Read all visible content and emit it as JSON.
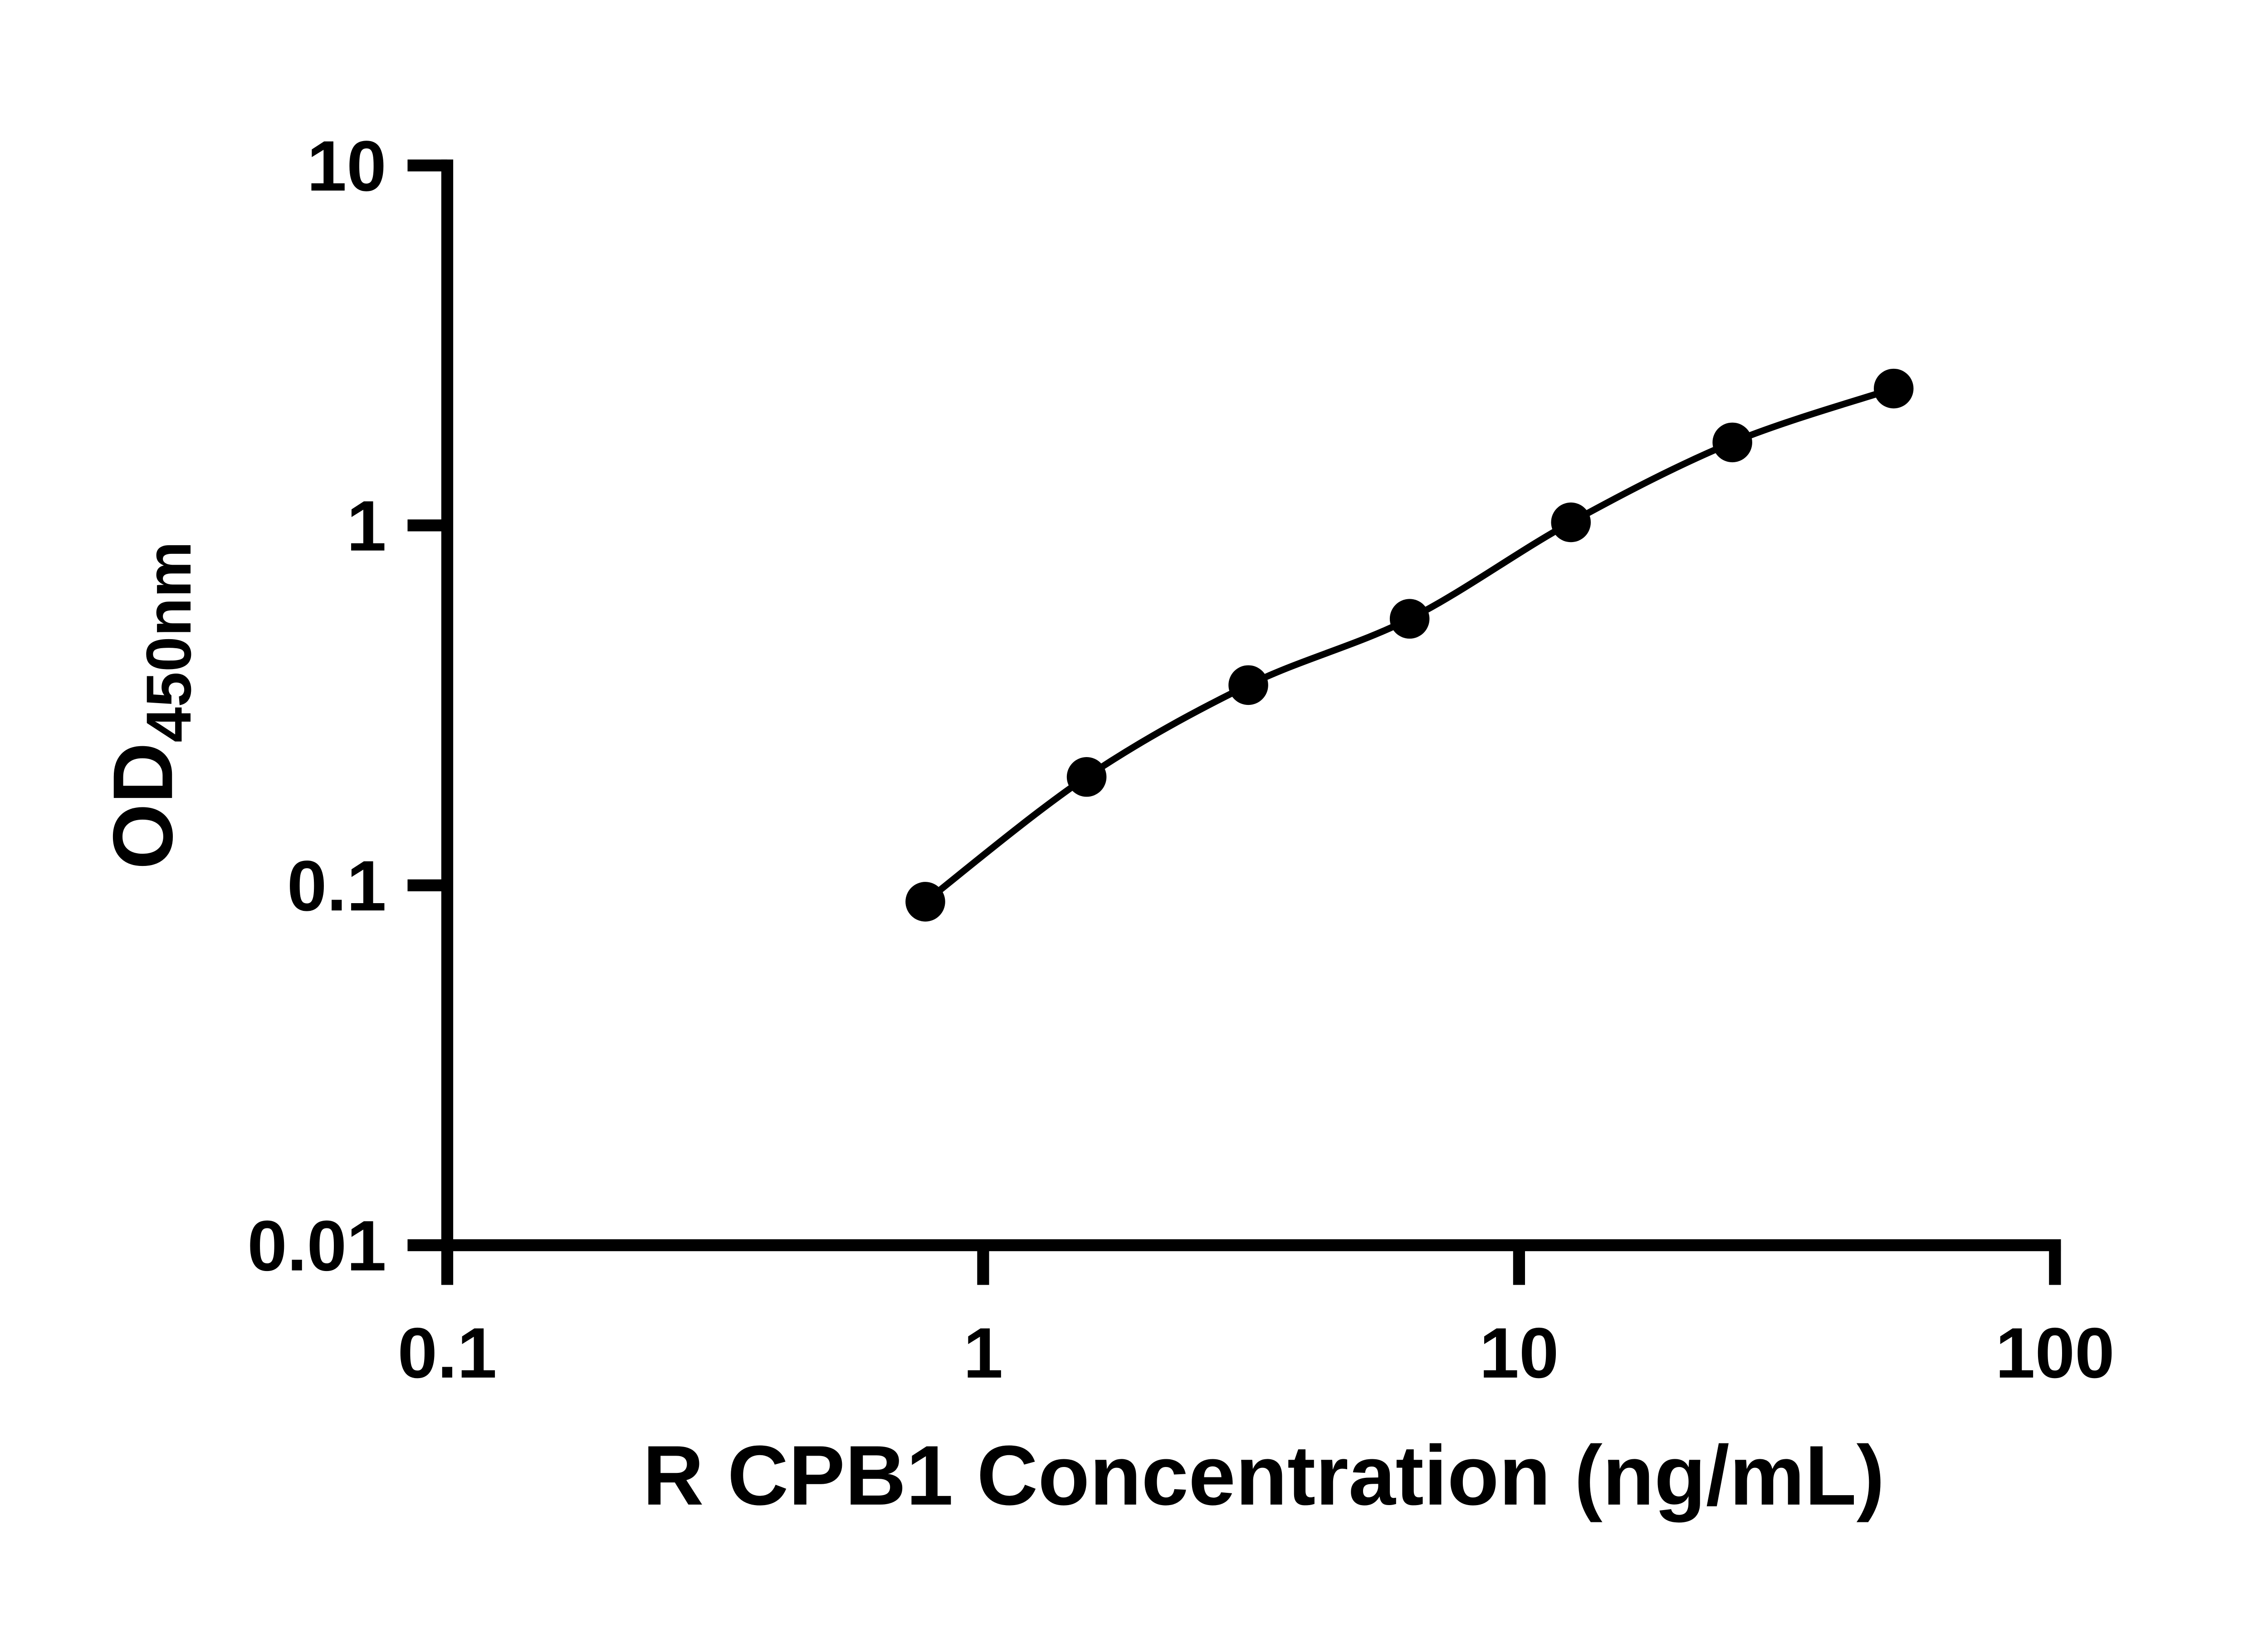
{
  "chart_data": {
    "type": "scatter",
    "title": "",
    "xlabel": "R CPB1 Concentration (ng/mL)",
    "ylabel": "OD",
    "ylabel_subscript": "450nm",
    "xscale": "log",
    "yscale": "log",
    "xlim": [
      0.1,
      100
    ],
    "ylim": [
      0.01,
      10
    ],
    "x_ticks": [
      0.1,
      1,
      10,
      100
    ],
    "x_tick_labels": [
      "0.1",
      "1",
      "10",
      "100"
    ],
    "y_ticks": [
      0.01,
      0.1,
      1,
      10
    ],
    "y_tick_labels": [
      "0.01",
      "0.1",
      "1",
      "10"
    ],
    "x": [
      0.78,
      1.56,
      3.125,
      6.25,
      12.5,
      25,
      50
    ],
    "y": [
      0.09,
      0.2,
      0.36,
      0.55,
      1.02,
      1.7,
      2.4
    ],
    "grid": false,
    "legend": null,
    "marker_color": "#000000",
    "line_color": "#000000",
    "axis_color": "#000000",
    "background_color": "#ffffff"
  }
}
